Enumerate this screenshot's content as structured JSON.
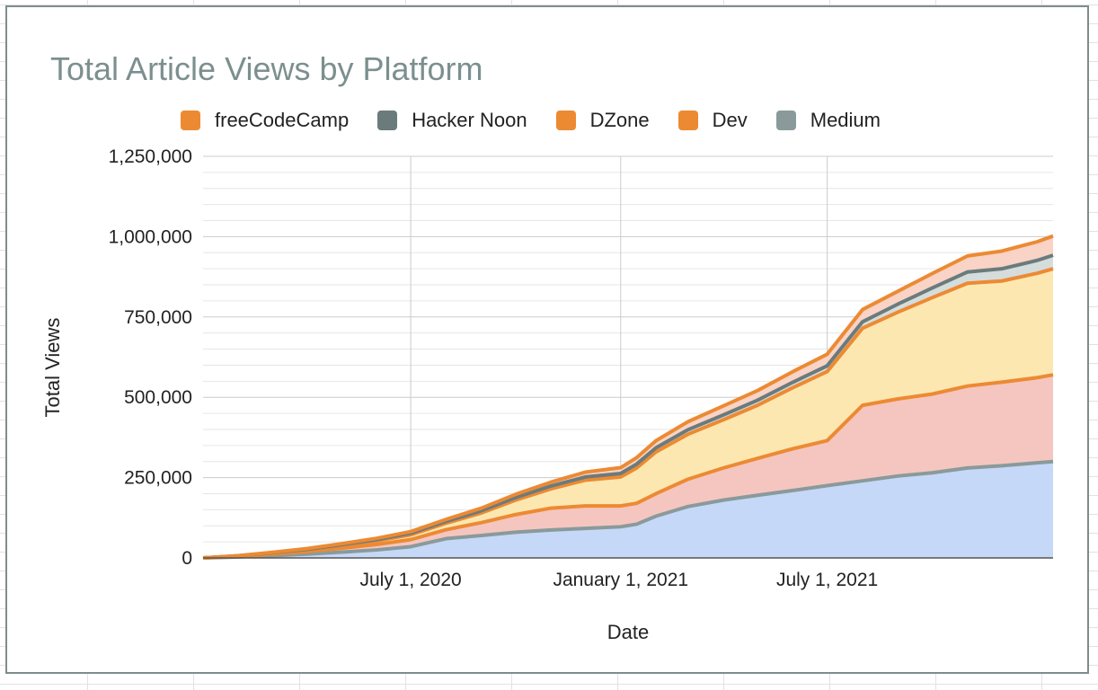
{
  "chart_data": {
    "type": "area",
    "stacked": true,
    "title": "Total Article Views by Platform",
    "xlabel": "Date",
    "ylabel": "Total Views",
    "x_axis": {
      "min": "2020-01-01",
      "max": "2022-01-15",
      "ticks": [
        {
          "date": "2020-07-01",
          "label": "July 1, 2020"
        },
        {
          "date": "2021-01-01",
          "label": "January 1, 2021"
        },
        {
          "date": "2021-07-01",
          "label": "July 1, 2021"
        }
      ]
    },
    "y_axis": {
      "min": 0,
      "max": 1250000,
      "ticks": [
        {
          "value": 0,
          "label": "0"
        },
        {
          "value": 250000,
          "label": "250,000"
        },
        {
          "value": 500000,
          "label": "500,000"
        },
        {
          "value": 750000,
          "label": "750,000"
        },
        {
          "value": 1000000,
          "label": "1,000,000"
        },
        {
          "value": 1250000,
          "label": "1,250,000"
        }
      ]
    },
    "grid": true,
    "legend_position": "top",
    "x": [
      "2020-01-01",
      "2020-02-01",
      "2020-03-01",
      "2020-04-01",
      "2020-05-01",
      "2020-06-01",
      "2020-07-01",
      "2020-08-01",
      "2020-09-01",
      "2020-10-01",
      "2020-11-01",
      "2020-12-01",
      "2021-01-01",
      "2021-01-15",
      "2021-02-01",
      "2021-03-01",
      "2021-04-01",
      "2021-05-01",
      "2021-06-01",
      "2021-07-01",
      "2021-08-01",
      "2021-09-01",
      "2021-10-01",
      "2021-11-01",
      "2021-12-01",
      "2022-01-01",
      "2022-01-15"
    ],
    "series": [
      {
        "name": "Medium",
        "color": "#8a9a9b",
        "fill": "#c6d8f7",
        "values": [
          0,
          3000,
          7000,
          12000,
          18000,
          25000,
          35000,
          60000,
          70000,
          80000,
          87000,
          92000,
          97000,
          105000,
          130000,
          160000,
          180000,
          195000,
          210000,
          225000,
          240000,
          255000,
          265000,
          280000,
          287000,
          296000,
          300000
        ]
      },
      {
        "name": "Dev",
        "color": "#ec8a33",
        "fill": "#f5c6c0",
        "values": [
          0,
          2000,
          5000,
          8000,
          12000,
          17000,
          22000,
          28000,
          40000,
          55000,
          68000,
          70000,
          65000,
          65000,
          70000,
          85000,
          100000,
          115000,
          130000,
          140000,
          235000,
          240000,
          245000,
          255000,
          260000,
          265000,
          270000
        ]
      },
      {
        "name": "DZone",
        "color": "#ec8a33",
        "fill": "#fde7b0",
        "values": [
          0,
          1000,
          3000,
          5000,
          8000,
          11000,
          15000,
          20000,
          30000,
          45000,
          60000,
          80000,
          90000,
          110000,
          130000,
          140000,
          150000,
          165000,
          190000,
          215000,
          240000,
          270000,
          300000,
          320000,
          315000,
          325000,
          330000
        ]
      },
      {
        "name": "Hacker Noon",
        "color": "#6b7b7c",
        "fill": "#d5dcdc",
        "values": [
          0,
          500,
          1000,
          2000,
          3000,
          4000,
          5000,
          6000,
          7000,
          8000,
          9000,
          10000,
          11000,
          12000,
          13000,
          14000,
          15000,
          16000,
          17000,
          18000,
          20000,
          25000,
          30000,
          35000,
          38000,
          40000,
          42000
        ]
      },
      {
        "name": "freeCodeCamp",
        "color": "#ec8a33",
        "fill": "#f8d3c6",
        "values": [
          0,
          500,
          1000,
          2000,
          3000,
          4000,
          5000,
          6000,
          8000,
          10000,
          12000,
          15000,
          18000,
          20000,
          22000,
          25000,
          28000,
          30000,
          33000,
          36000,
          38000,
          40000,
          45000,
          50000,
          55000,
          58000,
          60000
        ]
      }
    ]
  },
  "legend": [
    {
      "label": "freeCodeCamp",
      "color": "#ec8a33"
    },
    {
      "label": "Hacker Noon",
      "color": "#6b7b7c"
    },
    {
      "label": "DZone",
      "color": "#ec8a33"
    },
    {
      "label": "Dev",
      "color": "#ec8a33"
    },
    {
      "label": "Medium",
      "color": "#8a9a9b"
    }
  ]
}
